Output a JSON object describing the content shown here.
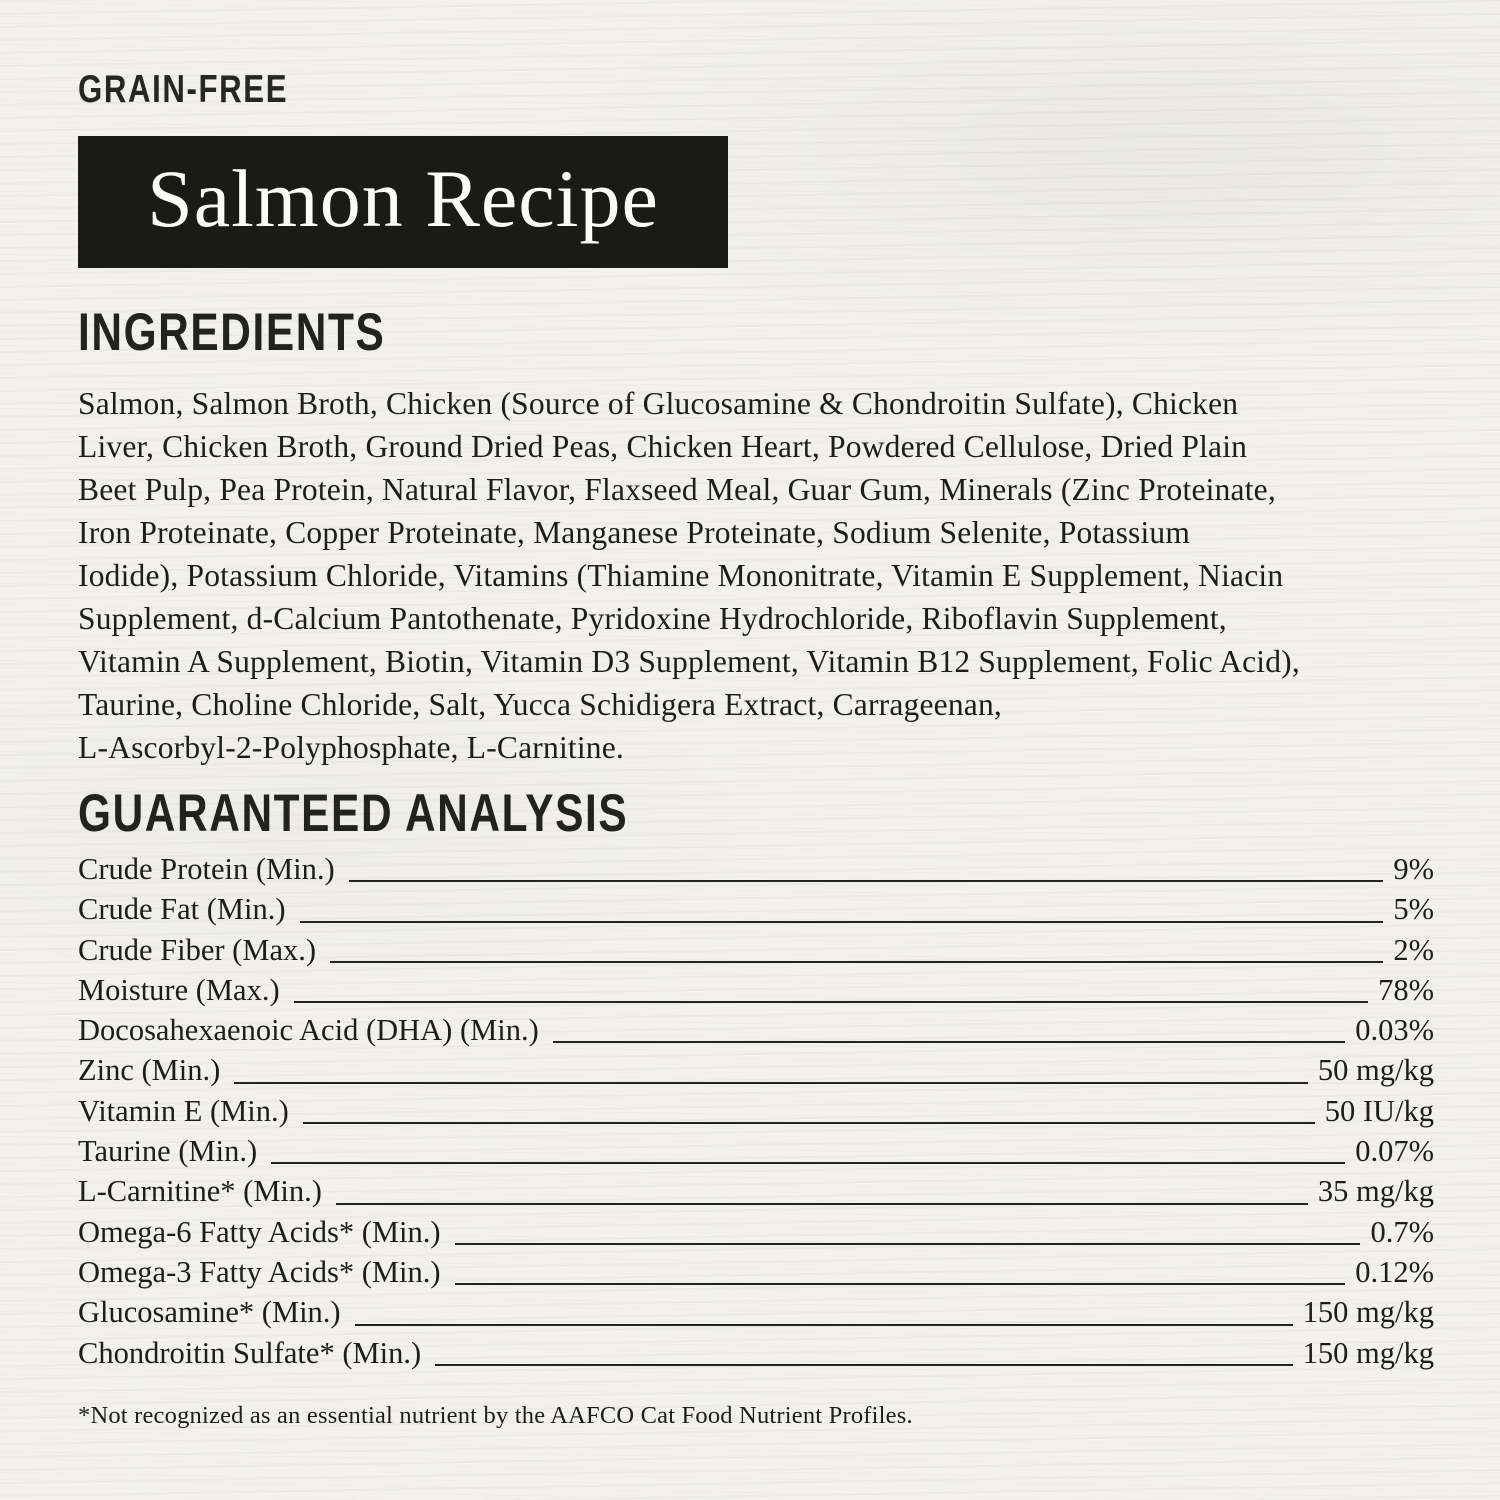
{
  "header": {
    "grain_free": "GRAIN-FREE",
    "recipe_title": "Salmon Recipe"
  },
  "ingredients": {
    "heading": "INGREDIENTS",
    "lines": [
      "Salmon, Salmon Broth, Chicken (Source of Glucosamine & Chondroitin Sulfate), Chicken",
      "Liver, Chicken Broth, Ground Dried Peas, Chicken Heart, Powdered Cellulose, Dried Plain",
      "Beet Pulp, Pea Protein, Natural Flavor, Flaxseed Meal, Guar Gum, Minerals (Zinc Proteinate,",
      "Iron Proteinate, Copper Proteinate, Manganese Proteinate, Sodium Selenite, Potassium",
      "Iodide), Potassium Chloride, Vitamins (Thiamine Mononitrate, Vitamin E Supplement, Niacin",
      "Supplement, d-Calcium Pantothenate, Pyridoxine Hydrochloride, Riboflavin Supplement,",
      "Vitamin A Supplement, Biotin, Vitamin D3 Supplement, Vitamin B12 Supplement, Folic Acid),",
      "Taurine, Choline Chloride, Salt, Yucca Schidigera Extract, Carrageenan,",
      "L-Ascorbyl-2-Polyphosphate, L-Carnitine."
    ]
  },
  "analysis": {
    "heading": "GUARANTEED ANALYSIS",
    "rows": [
      {
        "label": "Crude Protein (Min.)",
        "value": "9%"
      },
      {
        "label": "Crude Fat (Min.)",
        "value": "5%"
      },
      {
        "label": "Crude Fiber (Max.)",
        "value": "2%"
      },
      {
        "label": "Moisture (Max.)",
        "value": "78%"
      },
      {
        "label": "Docosahexaenoic Acid (DHA) (Min.)",
        "value": "0.03%"
      },
      {
        "label": "Zinc (Min.)",
        "value": "50 mg/kg"
      },
      {
        "label": "Vitamin E (Min.)",
        "value": "50 IU/kg"
      },
      {
        "label": "Taurine (Min.)",
        "value": "0.07%"
      },
      {
        "label": "L-Carnitine* (Min.)",
        "value": "35 mg/kg"
      },
      {
        "label": "Omega-6 Fatty Acids* (Min.)",
        "value": "0.7%"
      },
      {
        "label": "Omega-3 Fatty Acids* (Min.)",
        "value": "0.12%"
      },
      {
        "label": "Glucosamine* (Min.)",
        "value": "150 mg/kg"
      },
      {
        "label": "Chondroitin Sulfate* (Min.)",
        "value": "150 mg/kg"
      }
    ]
  },
  "footnote": "*Not recognized as an essential nutrient by the AAFCO Cat Food Nutrient Profiles.",
  "colors": {
    "panel_background": "#f2f1ee",
    "text": "#1d1d1b",
    "title_box_background": "#1a1a19",
    "title_text": "#fbfbfa"
  }
}
